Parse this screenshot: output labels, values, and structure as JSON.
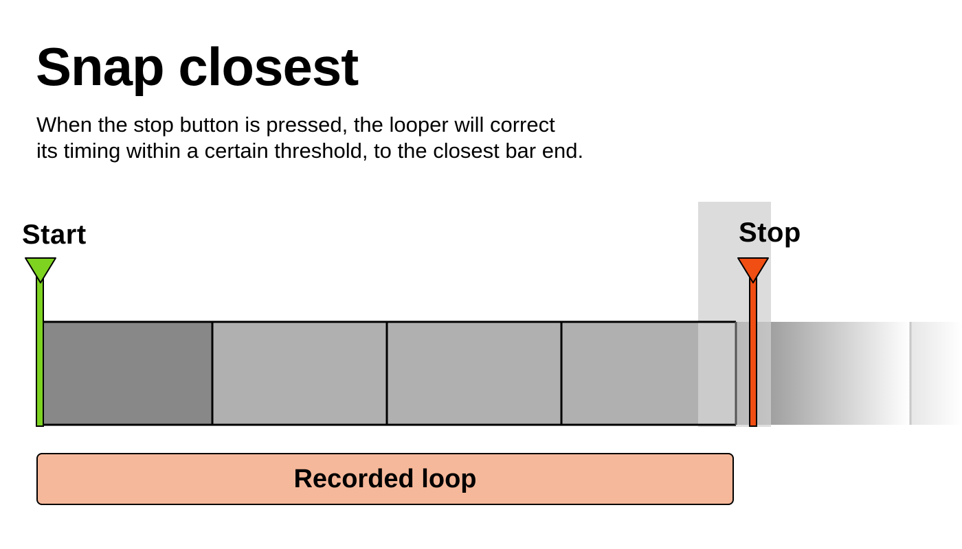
{
  "header": {
    "title": "Snap closest",
    "description_lines": [
      "When the stop button is pressed, the looper will correct",
      "its timing within a certain threshold, to the closest bar end."
    ]
  },
  "markers": {
    "start": {
      "label": "Start",
      "color": "#7ed321"
    },
    "stop": {
      "label": "Stop",
      "color": "#f04e12"
    }
  },
  "timeline": {
    "first_bar_color": "#888888",
    "bar_color": "#b0b0b0",
    "threshold_zone_color": "#dcdcdc"
  },
  "recorded_loop": {
    "label": "Recorded loop",
    "color": "#f6b89a"
  }
}
